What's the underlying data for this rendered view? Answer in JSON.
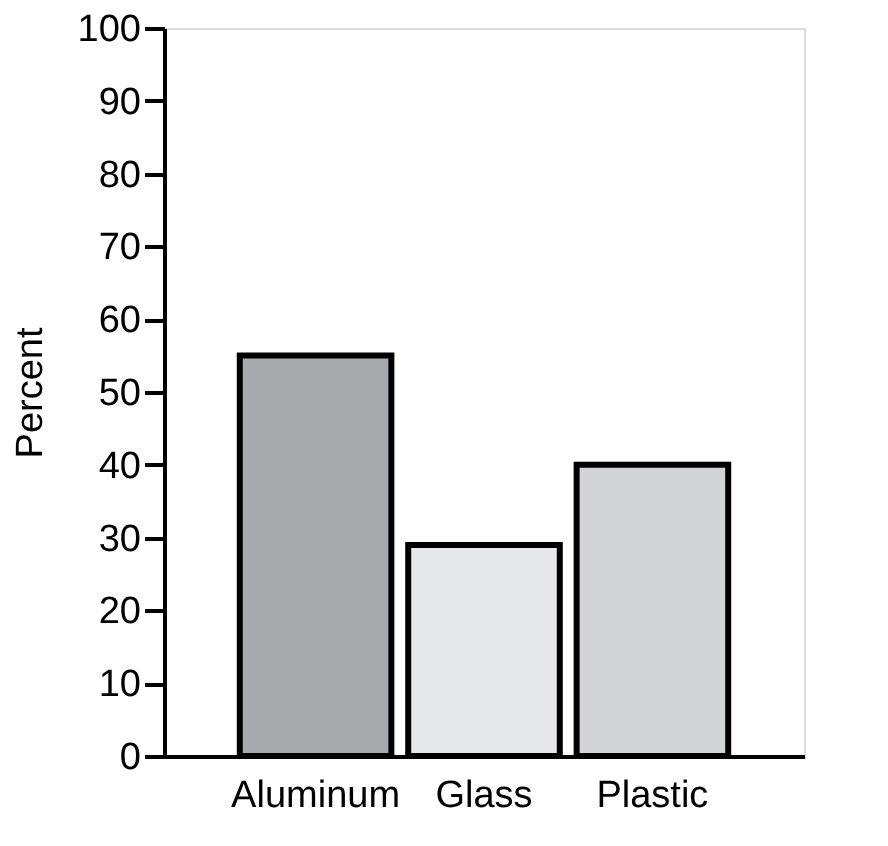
{
  "chart_data": {
    "type": "bar",
    "ylabel": "Percent",
    "categories": [
      "Aluminum",
      "Glass",
      "Plastic"
    ],
    "values": [
      55,
      29,
      40
    ],
    "colors": [
      "#a7a9ac",
      "#e6e7e8",
      "#d1d3d4"
    ],
    "ylim": [
      0,
      100
    ],
    "yticks": [
      0,
      10,
      20,
      30,
      40,
      50,
      60,
      70,
      80,
      90,
      100
    ],
    "grid": false
  }
}
